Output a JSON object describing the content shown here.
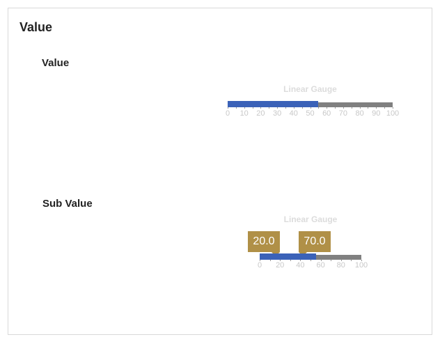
{
  "card": {
    "title": "Value"
  },
  "sections": [
    {
      "title": "Value",
      "gauge": {
        "title": "Linear Gauge",
        "min": 0,
        "max": 100,
        "value": 55,
        "ticks": [
          "0",
          "10",
          "20",
          "30",
          "40",
          "50",
          "60",
          "70",
          "80",
          "90",
          "100"
        ]
      }
    },
    {
      "title": "Sub Value",
      "gauge": {
        "title": "Linear Gauge",
        "min": 0,
        "max": 100,
        "range_start": 0,
        "range_end": 55,
        "callouts": [
          "20.0",
          "70.0"
        ],
        "ticks": [
          "0",
          "20",
          "40",
          "60",
          "80",
          "100"
        ]
      }
    }
  ],
  "colors": {
    "fill": "#3b62b8",
    "track": "#808080",
    "callout": "#b09047",
    "gauge_title": "#dcdcdc"
  }
}
